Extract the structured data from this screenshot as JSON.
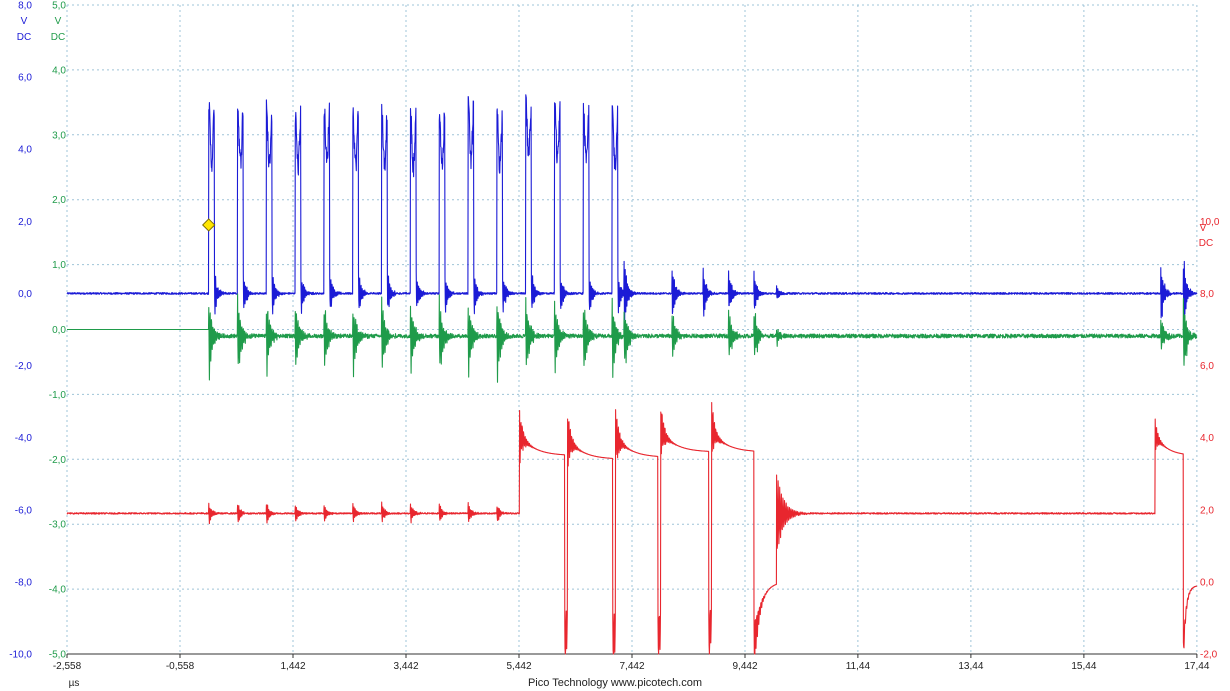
{
  "chart_data": {
    "type": "line",
    "title": "",
    "x_axis": {
      "unit": "µs",
      "range": [
        -2.558,
        17.442
      ],
      "tick_values": [
        -2.558,
        -0.558,
        1.442,
        3.442,
        5.442,
        7.442,
        9.442,
        11.44,
        13.44,
        15.44,
        17.44
      ],
      "tick_labels": [
        "-2,558",
        "-0,558",
        "1,442",
        "3,442",
        "5,442",
        "7,442",
        "9,442",
        "11,44",
        "13,44",
        "15,44",
        "17,44"
      ]
    },
    "grid": true,
    "grid_style": "dotted",
    "footer": "Pico Technology  www.picotech.com",
    "trigger_marker": {
      "x": -0.05,
      "y": 1.9,
      "axis": "blue",
      "color": "#ffe600"
    },
    "axes": [
      {
        "id": "blue",
        "side": "left",
        "color": "#1b1bd6",
        "unit": "V",
        "coupling": "DC",
        "range": [
          -10,
          8
        ],
        "tick_labels": [
          "8,0",
          "6,0",
          "4,0",
          "2,0",
          "0,0",
          "-2,0",
          "-4,0",
          "-6,0",
          "-8,0",
          "-10,0"
        ]
      },
      {
        "id": "green",
        "side": "left",
        "color": "#1f9b4a",
        "unit": "V",
        "coupling": "DC",
        "range": [
          -5,
          5
        ],
        "tick_labels": [
          "5,0",
          "4,0",
          "3,0",
          "2,0",
          "1,0",
          "0,0",
          "-1,0",
          "-2,0",
          "-3,0",
          "-4,0",
          "-5,0"
        ]
      },
      {
        "id": "red",
        "side": "right",
        "color": "#e8262e",
        "unit": "V",
        "coupling": "DC",
        "range": [
          -2,
          16
        ],
        "tick_labels": [
          "10,0",
          "8,0",
          "6,0",
          "4,0",
          "2,0",
          "0,0",
          "-2,0"
        ]
      }
    ],
    "series": [
      {
        "axis": "blue",
        "color": "#1b1bd6",
        "baseline": 0,
        "pulses_start": [
          -0.05,
          0.46,
          0.97,
          1.48,
          1.99,
          2.5,
          3.01,
          3.52,
          4.03,
          4.54,
          5.05,
          5.56,
          6.07,
          6.58,
          7.09
        ],
        "pulses_peak": [
          5.2,
          5.2,
          5.1,
          5.0,
          5.2,
          5.1,
          5.1,
          5.0,
          5.1,
          5.3,
          5.1,
          5.4,
          5.3,
          5.1,
          5.1
        ],
        "pulse_width": 0.1,
        "extra_rings": [
          {
            "x": 7.3,
            "amp": 1.2
          },
          {
            "x": 8.15,
            "amp": 0.95
          },
          {
            "x": 8.7,
            "amp": 0.8
          },
          {
            "x": 9.15,
            "amp": 0.7
          },
          {
            "x": 9.6,
            "amp": 0.7
          },
          {
            "x": 10.0,
            "amp": 0.25
          }
        ],
        "tail_event": {
          "x": 16.8,
          "amp": 1.1,
          "second": 17.2
        }
      },
      {
        "axis": "green",
        "color": "#1f9b4a",
        "baseline": 0.0,
        "noise_after": -0.1,
        "spikes": [
          {
            "x": -0.05,
            "lo": -0.9,
            "hi": 0.5
          },
          {
            "x": 0.46,
            "lo": -0.9,
            "hi": 0.6
          },
          {
            "x": 0.97,
            "lo": -0.8,
            "hi": 0.6
          },
          {
            "x": 1.48,
            "lo": -0.9,
            "hi": 0.5
          },
          {
            "x": 1.99,
            "lo": -0.85,
            "hi": 0.6
          },
          {
            "x": 2.5,
            "lo": -0.9,
            "hi": 0.6
          },
          {
            "x": 3.01,
            "lo": -1.0,
            "hi": 0.5
          },
          {
            "x": 3.52,
            "lo": -0.9,
            "hi": 0.6
          },
          {
            "x": 4.03,
            "lo": -0.95,
            "hi": 0.55
          },
          {
            "x": 4.54,
            "lo": -0.9,
            "hi": 0.6
          },
          {
            "x": 5.05,
            "lo": -0.85,
            "hi": 0.65
          },
          {
            "x": 5.56,
            "lo": -1.0,
            "hi": 0.6
          },
          {
            "x": 6.07,
            "lo": -0.9,
            "hi": 0.6
          },
          {
            "x": 6.58,
            "lo": -0.9,
            "hi": 0.6
          },
          {
            "x": 7.09,
            "lo": -0.8,
            "hi": 0.6
          },
          {
            "x": 7.3,
            "lo": -0.8,
            "hi": 0.6
          },
          {
            "x": 8.15,
            "lo": -0.4,
            "hi": 0.5
          },
          {
            "x": 9.15,
            "lo": -0.5,
            "hi": 0.5
          },
          {
            "x": 9.6,
            "lo": -0.6,
            "hi": 0.6
          },
          {
            "x": 10.0,
            "lo": -0.15,
            "hi": 0.15
          },
          {
            "x": 16.8,
            "lo": -0.3,
            "hi": 0.45
          },
          {
            "x": 17.2,
            "lo": -0.95,
            "hi": 0.5
          }
        ]
      },
      {
        "axis": "red",
        "color": "#e8262e",
        "baseline": 1.9,
        "small_pulses": [
          -0.05,
          0.46,
          0.97,
          1.48,
          1.99,
          2.5,
          3.01,
          3.52,
          4.03,
          4.54,
          5.05
        ],
        "small_amp": 0.3,
        "big_cycles": [
          {
            "x_up": 5.45,
            "hi": 4.1,
            "x_down": 6.25,
            "lo": -1.8
          },
          {
            "x_up": 6.3,
            "hi": 4.0,
            "x_down": 7.1,
            "lo": -1.9
          },
          {
            "x_up": 7.15,
            "hi": 4.05,
            "x_down": 7.9,
            "lo": -1.8
          },
          {
            "x_up": 7.95,
            "hi": 4.2,
            "x_down": 8.8,
            "lo": -1.7
          },
          {
            "x_up": 8.85,
            "hi": 4.2,
            "x_down": 9.6,
            "lo": -1.9
          }
        ],
        "ringdown": {
          "x": 10.0,
          "amp": 1.2
        },
        "tail_event": {
          "x_up": 16.7,
          "hi": 4.1,
          "x_down": 17.2,
          "lo": -2.0,
          "settle": -0.1
        }
      }
    ]
  }
}
